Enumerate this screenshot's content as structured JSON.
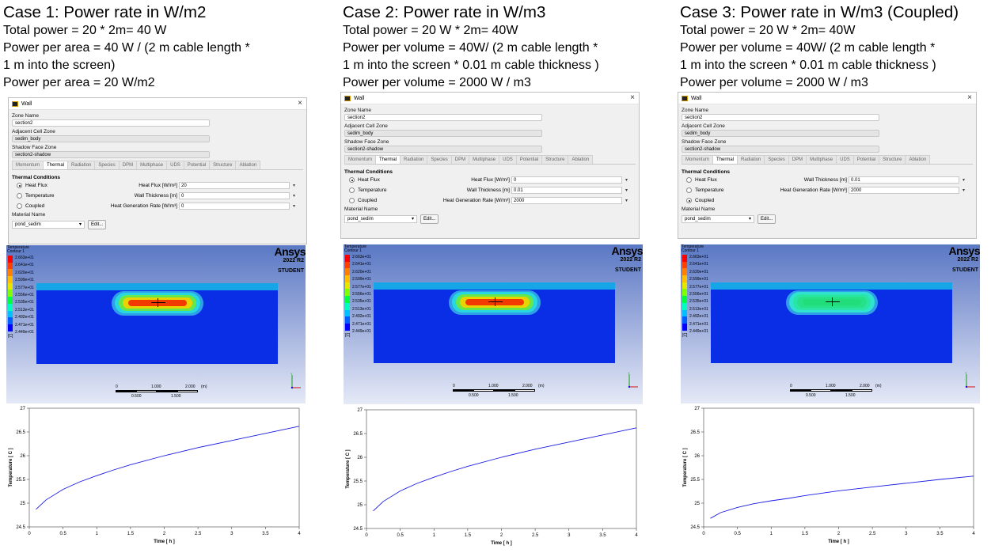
{
  "cases": [
    {
      "title": "Case 1: Power rate in W/m2",
      "lines": [
        "Total power = 20 * 2m= 40 W",
        "Power per area = 40 W / (2 m cable length *",
        "1 m into the screen)",
        "Power per area = 20 W/m2"
      ],
      "dialog": {
        "title": "Wall",
        "close": "×",
        "zone_label": "Zone Name",
        "zone_value": "section2",
        "adj_label": "Adjacent Cell Zone",
        "adj_value": "sedim_body",
        "shadow_label": "Shadow Face Zone",
        "shadow_value": "section2-shadow",
        "tabs": [
          "Momentum",
          "Thermal",
          "Radiation",
          "Species",
          "DPM",
          "Multiphase",
          "UDS",
          "Potential",
          "Structure",
          "Ablation"
        ],
        "active_tab": "Thermal",
        "tc_title": "Thermal Conditions",
        "radios": [
          {
            "label": "Heat Flux",
            "on": true
          },
          {
            "label": "Temperature",
            "on": false
          },
          {
            "label": "Coupled",
            "on": false
          }
        ],
        "params": [
          {
            "label": "Heat Flux [W/m²]",
            "value": "20"
          },
          {
            "label": "Wall Thickness [m]",
            "value": "0"
          },
          {
            "label": "Heat Generation Rate [W/m³]",
            "value": "0"
          }
        ],
        "material_label": "Material Name",
        "material_value": "pond_sedim",
        "edit_label": "Edit..."
      },
      "chart_data": {
        "type": "line",
        "ylabel": "Temperature [ C ]",
        "xlabel": "Time [ h ]",
        "xlim": [
          0,
          4
        ],
        "ylim": [
          24.5,
          27
        ],
        "x": [
          0.1,
          0.25,
          0.5,
          0.75,
          1.0,
          1.25,
          1.5,
          2.0,
          2.5,
          3.0,
          3.5,
          4.0
        ],
        "y": [
          24.87,
          25.07,
          25.29,
          25.45,
          25.58,
          25.7,
          25.81,
          26.0,
          26.17,
          26.32,
          26.47,
          26.62
        ]
      }
    },
    {
      "title": "Case 2: Power rate in W/m3",
      "lines": [
        "Total power = 20 W * 2m= 40W",
        "Power per volume = 40W/ (2 m cable length *",
        "1 m into the screen * 0.01 m cable thickness )",
        "Power per volume = 2000 W / m3"
      ],
      "dialog": {
        "title": "Wall",
        "close": "×",
        "zone_label": "Zone Name",
        "zone_value": "section2",
        "adj_label": "Adjacent Cell Zone",
        "adj_value": "sedim_body",
        "shadow_label": "Shadow Face Zone",
        "shadow_value": "section2-shadow",
        "tabs": [
          "Momentum",
          "Thermal",
          "Radiation",
          "Species",
          "DPM",
          "Multiphase",
          "UDS",
          "Potential",
          "Structure",
          "Ablation"
        ],
        "active_tab": "Thermal",
        "tc_title": "Thermal Conditions",
        "radios": [
          {
            "label": "Heat Flux",
            "on": true
          },
          {
            "label": "Temperature",
            "on": false
          },
          {
            "label": "Coupled",
            "on": false
          }
        ],
        "params": [
          {
            "label": "Heat Flux [W/m²]",
            "value": "0"
          },
          {
            "label": "Wall Thickness [m]",
            "value": "0.01"
          },
          {
            "label": "Heat Generation Rate [W/m³]",
            "value": "2000"
          }
        ],
        "material_label": "Material Name",
        "material_value": "pond_sedim",
        "edit_label": "Edit..."
      },
      "chart_data": {
        "type": "line",
        "ylabel": "Temperature [ C ]",
        "xlabel": "Time [ h ]",
        "xlim": [
          0,
          4
        ],
        "ylim": [
          24.5,
          27
        ],
        "x": [
          0.1,
          0.25,
          0.5,
          0.75,
          1.0,
          1.25,
          1.5,
          2.0,
          2.5,
          3.0,
          3.5,
          4.0
        ],
        "y": [
          24.87,
          25.07,
          25.29,
          25.45,
          25.58,
          25.7,
          25.81,
          26.0,
          26.17,
          26.32,
          26.47,
          26.62
        ]
      }
    },
    {
      "title": "Case 3: Power rate in W/m3 (Coupled)",
      "lines": [
        "Total power = 20 W * 2m= 40W",
        "Power per volume = 40W/ (2 m cable length *",
        "1 m into the screen * 0.01 m cable thickness )",
        "Power per volume = 2000 W / m3"
      ],
      "dialog": {
        "title": "Wall",
        "close": "×",
        "zone_label": "Zone Name",
        "zone_value": "section2",
        "adj_label": "Adjacent Cell Zone",
        "adj_value": "sedim_body",
        "shadow_label": "Shadow Face Zone",
        "shadow_value": "section2-shadow",
        "tabs": [
          "Momentum",
          "Thermal",
          "Radiation",
          "Species",
          "DPM",
          "Multiphase",
          "UDS",
          "Potential",
          "Structure",
          "Ablation"
        ],
        "active_tab": "Thermal",
        "tc_title": "Thermal Conditions",
        "radios": [
          {
            "label": "Heat Flux",
            "on": false
          },
          {
            "label": "Temperature",
            "on": false
          },
          {
            "label": "Coupled",
            "on": true
          }
        ],
        "params": [
          {
            "label": "Wall Thickness [m]",
            "value": "0.01"
          },
          {
            "label": "Heat Generation Rate [W/m³]",
            "value": "2000"
          }
        ],
        "material_label": "Material Name",
        "material_value": "pond_sedim",
        "edit_label": "Edit..."
      },
      "chart_data": {
        "type": "line",
        "ylabel": "Temperature [ C ]",
        "xlabel": "Time [ h ]",
        "xlim": [
          0,
          4
        ],
        "ylim": [
          24.5,
          27
        ],
        "x": [
          0.1,
          0.25,
          0.5,
          0.75,
          1.0,
          1.25,
          1.5,
          2.0,
          2.5,
          3.0,
          3.5,
          4.0
        ],
        "y": [
          24.68,
          24.8,
          24.91,
          24.99,
          25.05,
          25.1,
          25.16,
          25.26,
          25.34,
          25.42,
          25.5,
          25.57
        ]
      }
    }
  ],
  "contour": {
    "legend_title": "Temperature",
    "legend_sub": "Contour 1",
    "labels": [
      "2.663e+01",
      "2.641e+01",
      "2.620e+01",
      "2.599e+01",
      "2.577e+01",
      "2.556e+01",
      "2.535e+01",
      "2.513e+01",
      "2.492e+01",
      "2.471e+01",
      "2.449e+01"
    ],
    "unit": "[C]",
    "brand": "Ansys",
    "version": "2022 R2",
    "edition": "STUDENT",
    "scale_labels_top": [
      "0",
      "1.000",
      "2.000",
      "(m)"
    ],
    "scale_labels_bottom": [
      "0.500",
      "1.500"
    ]
  },
  "chart_axes": {
    "xticks": [
      "0",
      "0.5",
      "1",
      "1.5",
      "2",
      "2.5",
      "3",
      "3.5",
      "4"
    ],
    "yticks": [
      "24.5",
      "25",
      "25.5",
      "26",
      "26.5",
      "27"
    ],
    "line_color": "#1a1ae6"
  }
}
